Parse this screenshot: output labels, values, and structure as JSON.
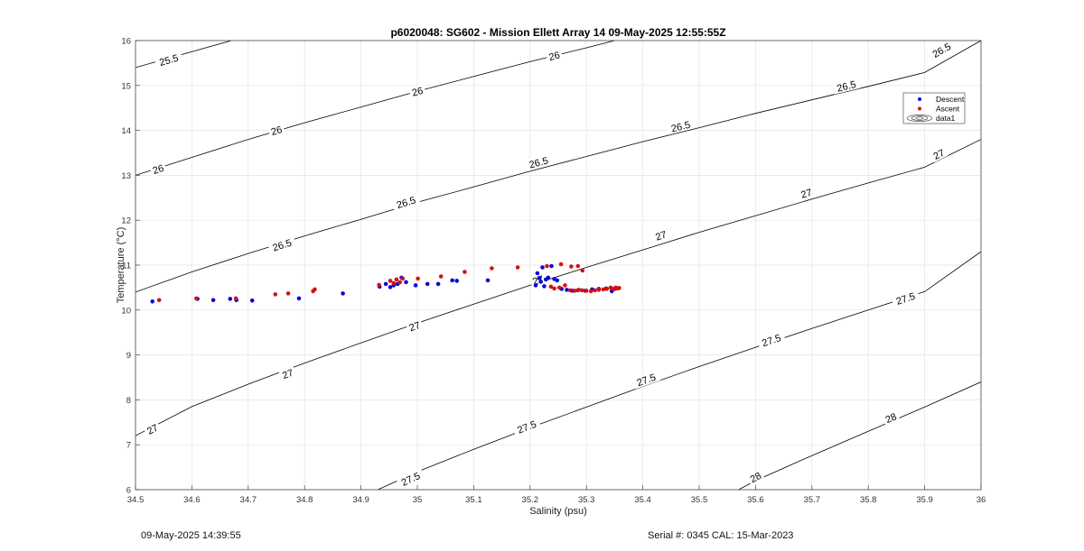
{
  "footer": {
    "timestamp": "09-May-2025 14:39:55",
    "serial_cal": "Serial #: 0345  CAL: 15-Mar-2023"
  },
  "colors": {
    "descent": "#0a0ad6",
    "ascent": "#d61111",
    "contour": "#000000",
    "grid": "#e3e3e3",
    "axes": "#444444"
  },
  "chart_data": {
    "type": "scatter",
    "title": "p6020048: SG602 - Mission Ellett Array 14 09-May-2025 12:55:55Z",
    "xlabel": "Salinity (psu)",
    "ylabel": "Temperature (°C)",
    "xlim": [
      34.5,
      36
    ],
    "ylim": [
      6,
      16
    ],
    "xticks": [
      "34.5",
      "34.6",
      "34.7",
      "34.8",
      "34.9",
      "35",
      "35.1",
      "35.2",
      "35.3",
      "35.4",
      "35.5",
      "35.6",
      "35.7",
      "35.8",
      "35.9",
      "36"
    ],
    "yticks": [
      "6",
      "7",
      "8",
      "9",
      "10",
      "11",
      "12",
      "13",
      "14",
      "15",
      "16"
    ],
    "grid": true,
    "legend": {
      "placement": "top-right",
      "entries": [
        "Descent",
        "Ascent",
        "data1"
      ]
    },
    "series": [
      {
        "name": "Descent",
        "x": [
          34.53,
          34.61,
          34.638,
          34.668,
          34.679,
          34.707,
          34.79,
          34.868,
          34.933,
          34.944,
          34.952,
          34.958,
          34.965,
          34.972,
          34.98,
          34.997,
          35.018,
          35.037,
          35.062,
          35.07,
          35.125,
          35.21,
          35.213,
          35.216,
          35.219,
          35.222,
          35.225,
          35.228,
          35.232,
          35.238,
          35.243,
          35.248,
          35.256,
          35.265,
          35.275,
          35.285,
          35.298,
          35.31,
          35.322,
          35.335,
          35.345,
          35.35
        ],
        "y": [
          10.19,
          10.25,
          10.22,
          10.25,
          10.22,
          10.21,
          10.26,
          10.37,
          10.52,
          10.58,
          10.51,
          10.55,
          10.58,
          10.72,
          10.62,
          10.55,
          10.58,
          10.58,
          10.66,
          10.65,
          10.66,
          10.55,
          10.82,
          10.71,
          10.63,
          10.95,
          10.53,
          10.68,
          10.72,
          10.98,
          10.69,
          10.66,
          10.47,
          10.45,
          10.43,
          10.44,
          10.43,
          10.46,
          10.47,
          10.48,
          10.42,
          10.47
        ]
      },
      {
        "name": "Ascent",
        "x": [
          34.542,
          34.608,
          34.678,
          34.748,
          34.771,
          34.815,
          34.818,
          34.932,
          34.952,
          34.958,
          34.963,
          34.969,
          34.974,
          35.001,
          35.042,
          35.084,
          35.132,
          35.178,
          35.23,
          35.237,
          35.243,
          35.252,
          35.262,
          35.271,
          35.279,
          35.286,
          35.292,
          35.3,
          35.308,
          35.315,
          35.322,
          35.33,
          35.336,
          35.343,
          35.348,
          35.352,
          35.355,
          35.358,
          35.255,
          35.273,
          35.285,
          35.293
        ],
        "y": [
          10.22,
          10.26,
          10.26,
          10.35,
          10.37,
          10.42,
          10.46,
          10.56,
          10.65,
          10.6,
          10.68,
          10.62,
          10.7,
          10.7,
          10.75,
          10.85,
          10.93,
          10.95,
          10.98,
          10.52,
          10.48,
          10.5,
          10.55,
          10.44,
          10.43,
          10.45,
          10.44,
          10.43,
          10.42,
          10.44,
          10.45,
          10.46,
          10.47,
          10.5,
          10.47,
          10.5,
          10.48,
          10.49,
          11.02,
          10.97,
          10.98,
          10.88
        ]
      }
    ],
    "contours": [
      {
        "label": "25.5",
        "label_positions": [
          [
            34.559,
            15.57
          ]
        ],
        "points": [
          [
            34.5,
            15.4
          ],
          [
            34.67,
            16.0
          ]
        ]
      },
      {
        "label": "26",
        "label_positions": [
          [
            34.54,
            13.14
          ],
          [
            34.75,
            14.0
          ],
          [
            35.0,
            14.87
          ],
          [
            35.243,
            15.66
          ]
        ],
        "points": [
          [
            34.5,
            13.0
          ],
          [
            34.6,
            13.4
          ],
          [
            34.7,
            13.8
          ],
          [
            34.8,
            14.17
          ],
          [
            34.9,
            14.52
          ],
          [
            35.0,
            14.87
          ],
          [
            35.1,
            15.2
          ],
          [
            35.2,
            15.53
          ],
          [
            35.3,
            15.84
          ],
          [
            35.35,
            16.0
          ]
        ]
      },
      {
        "label": "26.5",
        "label_positions": [
          [
            34.76,
            11.45
          ],
          [
            34.98,
            12.4
          ],
          [
            35.215,
            13.29
          ],
          [
            35.467,
            14.09
          ],
          [
            35.761,
            14.99
          ],
          [
            35.93,
            15.79
          ]
        ],
        "points": [
          [
            34.5,
            10.4
          ],
          [
            34.6,
            10.85
          ],
          [
            34.7,
            11.26
          ],
          [
            34.8,
            11.65
          ],
          [
            34.9,
            12.02
          ],
          [
            35.0,
            12.4
          ],
          [
            35.1,
            12.74
          ],
          [
            35.2,
            13.09
          ],
          [
            35.3,
            13.42
          ],
          [
            35.4,
            13.75
          ],
          [
            35.5,
            14.06
          ],
          [
            35.6,
            14.38
          ],
          [
            35.7,
            14.68
          ],
          [
            35.8,
            14.98
          ],
          [
            35.9,
            15.29
          ],
          [
            36.0,
            16.0
          ]
        ]
      },
      {
        "label": "27",
        "label_positions": [
          [
            34.53,
            7.35
          ],
          [
            34.77,
            8.58
          ],
          [
            34.995,
            9.64
          ],
          [
            35.214,
            10.67
          ],
          [
            35.432,
            11.66
          ],
          [
            35.69,
            12.6
          ],
          [
            35.925,
            13.47
          ]
        ],
        "points": [
          [
            34.5,
            7.2
          ],
          [
            34.6,
            7.85
          ],
          [
            34.7,
            8.35
          ],
          [
            34.8,
            8.82
          ],
          [
            34.9,
            9.27
          ],
          [
            35.0,
            9.71
          ],
          [
            35.1,
            10.13
          ],
          [
            35.2,
            10.55
          ],
          [
            35.3,
            10.95
          ],
          [
            35.4,
            11.34
          ],
          [
            35.5,
            11.73
          ],
          [
            35.6,
            12.1
          ],
          [
            35.7,
            12.47
          ],
          [
            35.8,
            12.83
          ],
          [
            35.9,
            13.18
          ],
          [
            36.0,
            13.8
          ]
        ]
      },
      {
        "label": "27.5",
        "label_positions": [
          [
            34.988,
            6.24
          ],
          [
            35.194,
            7.4
          ],
          [
            35.406,
            8.45
          ],
          [
            35.628,
            9.33
          ],
          [
            35.866,
            10.26
          ]
        ],
        "points": [
          [
            34.93,
            6.0
          ],
          [
            35.0,
            6.4
          ],
          [
            35.1,
            6.9
          ],
          [
            35.2,
            7.38
          ],
          [
            35.3,
            7.84
          ],
          [
            35.4,
            8.3
          ],
          [
            35.5,
            8.74
          ],
          [
            35.6,
            9.17
          ],
          [
            35.7,
            9.59
          ],
          [
            35.8,
            10.0
          ],
          [
            35.9,
            10.41
          ],
          [
            36.0,
            11.3
          ]
        ]
      },
      {
        "label": "28",
        "label_positions": [
          [
            35.6,
            6.28
          ],
          [
            35.84,
            7.6
          ]
        ],
        "points": [
          [
            35.57,
            6.0
          ],
          [
            35.6,
            6.2
          ],
          [
            35.7,
            6.76
          ],
          [
            35.8,
            7.3
          ],
          [
            35.9,
            7.84
          ],
          [
            36.0,
            8.4
          ]
        ]
      }
    ]
  }
}
